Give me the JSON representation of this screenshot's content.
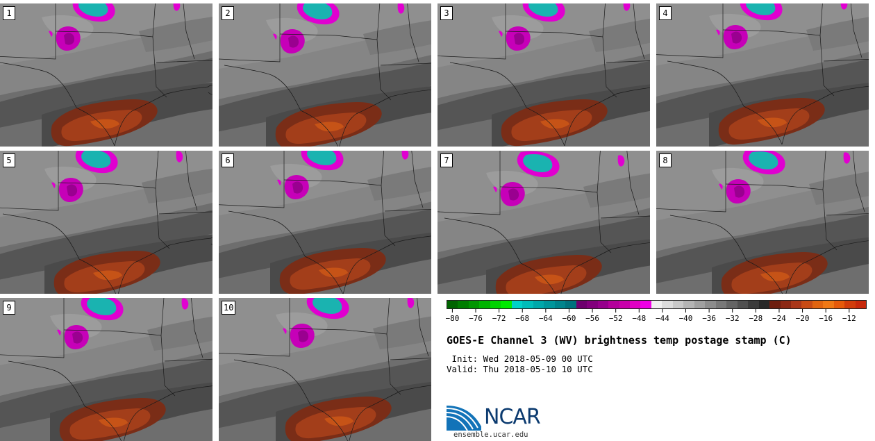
{
  "panels": [
    {
      "label": "1"
    },
    {
      "label": "2"
    },
    {
      "label": "3"
    },
    {
      "label": "4"
    },
    {
      "label": "5"
    },
    {
      "label": "6"
    },
    {
      "label": "7"
    },
    {
      "label": "8"
    },
    {
      "label": "9"
    },
    {
      "label": "10"
    }
  ],
  "colorbar": {
    "colors": [
      "#006400",
      "#007d00",
      "#009600",
      "#00b400",
      "#00d200",
      "#00eb00",
      "#00d2c8",
      "#00bdb9",
      "#00a8aa",
      "#00969b",
      "#00848c",
      "#00727d",
      "#6e006e",
      "#82007d",
      "#96008c",
      "#b4009b",
      "#c800aa",
      "#e100c3",
      "#f000e6",
      "#f0f0f0",
      "#dcdcdc",
      "#c8c8c8",
      "#b4b4b4",
      "#a0a0a0",
      "#8c8c8c",
      "#787878",
      "#646464",
      "#505050",
      "#3c3c3c",
      "#282828",
      "#6e1e0f",
      "#8c2814",
      "#aa3719",
      "#c84b14",
      "#e1640f",
      "#f07814",
      "#e65a0a",
      "#d23c0a",
      "#c8280a"
    ],
    "min": -81,
    "max": -9,
    "ticks": [
      "−80",
      "−76",
      "−72",
      "−68",
      "−64",
      "−60",
      "−56",
      "−52",
      "−48",
      "−44",
      "−40",
      "−36",
      "−32",
      "−28",
      "−24",
      "−20",
      "−16",
      "−12"
    ],
    "tick_values": [
      -80,
      -76,
      -72,
      -68,
      -64,
      -60,
      -56,
      -52,
      -48,
      -44,
      -40,
      -36,
      -32,
      -28,
      -24,
      -20,
      -16,
      -12
    ]
  },
  "title": "GOES-E Channel 3 (WV) brightness temp postage stamp (C)",
  "init": " Init: Wed 2018-05-09 00 UTC",
  "valid": "Valid: Thu 2018-05-10 10 UTC",
  "logo": {
    "text": "NCAR",
    "url": "ensemble.ucar.edu",
    "color": "#0b3a6f"
  }
}
